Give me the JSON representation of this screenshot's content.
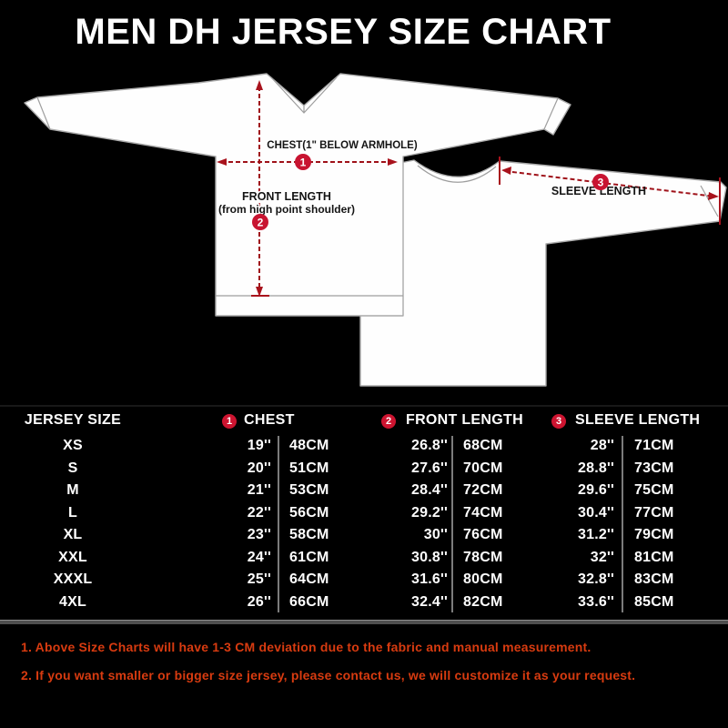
{
  "title": "MEN DH JERSEY SIZE CHART",
  "colors": {
    "background": "#000000",
    "title_text": "#ffffff",
    "jersey_fill": "#fefefe",
    "annotation_red": "#a8121c",
    "badge_red": "#cd1430",
    "table_text": "#ffffff",
    "divider_gray": "#9b9b9b",
    "note_red": "#d83b10"
  },
  "diagram": {
    "chest_label": "CHEST(1\" BELOW ARMHOLE)",
    "front_length_label": "FRONT LENGTH",
    "front_length_sublabel": "(from high point shoulder)",
    "sleeve_length_label": "SLEEVE LENGTH",
    "marker_1": "1",
    "marker_2": "2",
    "marker_3": "3"
  },
  "table": {
    "headers": {
      "size": "JERSEY SIZE",
      "chest": "CHEST",
      "front_length": "FRONT LENGTH",
      "sleeve_length": "SLEEVE LENGTH"
    },
    "header_badges": [
      "1",
      "2",
      "3"
    ],
    "rows": [
      {
        "size": "XS",
        "chest_in": "19''",
        "chest_cm": "48CM",
        "front_in": "26.8''",
        "front_cm": "68CM",
        "sleeve_in": "28''",
        "sleeve_cm": "71CM"
      },
      {
        "size": "S",
        "chest_in": "20''",
        "chest_cm": "51CM",
        "front_in": "27.6''",
        "front_cm": "70CM",
        "sleeve_in": "28.8''",
        "sleeve_cm": "73CM"
      },
      {
        "size": "M",
        "chest_in": "21''",
        "chest_cm": "53CM",
        "front_in": "28.4''",
        "front_cm": "72CM",
        "sleeve_in": "29.6''",
        "sleeve_cm": "75CM"
      },
      {
        "size": "L",
        "chest_in": "22''",
        "chest_cm": "56CM",
        "front_in": "29.2''",
        "front_cm": "74CM",
        "sleeve_in": "30.4''",
        "sleeve_cm": "77CM"
      },
      {
        "size": "XL",
        "chest_in": "23''",
        "chest_cm": "58CM",
        "front_in": "30''",
        "front_cm": "76CM",
        "sleeve_in": "31.2''",
        "sleeve_cm": "79CM"
      },
      {
        "size": "XXL",
        "chest_in": "24''",
        "chest_cm": "61CM",
        "front_in": "30.8''",
        "front_cm": "78CM",
        "sleeve_in": "32''",
        "sleeve_cm": "81CM"
      },
      {
        "size": "XXXL",
        "chest_in": "25''",
        "chest_cm": "64CM",
        "front_in": "31.6''",
        "front_cm": "80CM",
        "sleeve_in": "32.8''",
        "sleeve_cm": "83CM"
      },
      {
        "size": "4XL",
        "chest_in": "26''",
        "chest_cm": "66CM",
        "front_in": "32.4''",
        "front_cm": "82CM",
        "sleeve_in": "33.6''",
        "sleeve_cm": "85CM"
      }
    ]
  },
  "notes": [
    "1. Above Size Charts will have 1-3 CM deviation due to the fabric and manual measurement.",
    "2. If you want smaller or bigger size jersey, please contact us, we will customize it as your request."
  ]
}
